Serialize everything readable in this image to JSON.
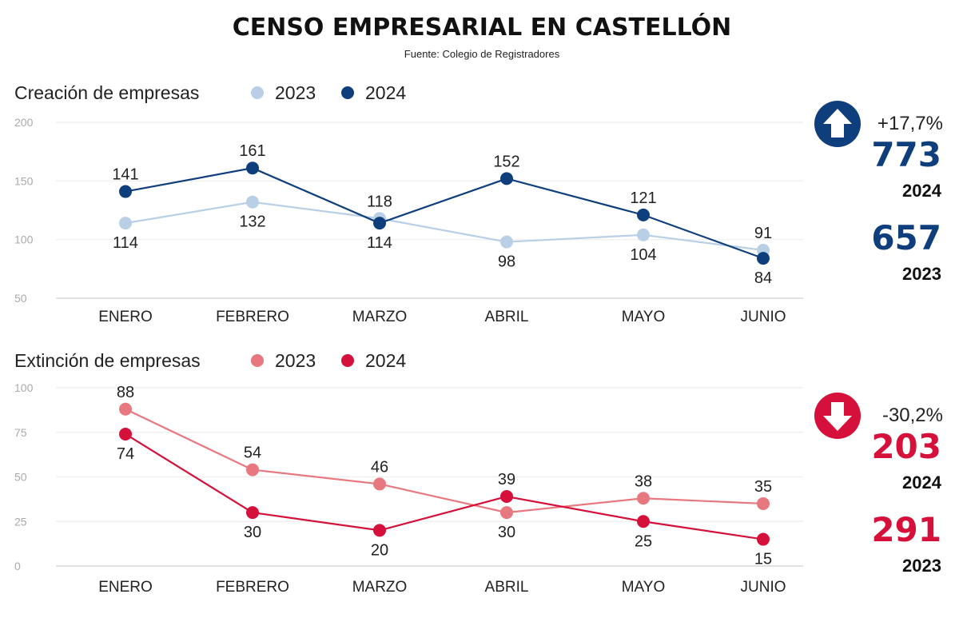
{
  "title": "CENSO EMPRESARIAL EN CASTELLÓN",
  "source": "Fuente: Colegio de Registradores",
  "chart_data": [
    {
      "type": "line",
      "title": "Creación de empresas",
      "categories": [
        "ENERO",
        "FEBRERO",
        "MARZO",
        "ABRIL",
        "MAYO",
        "JUNIO"
      ],
      "ylim": [
        50,
        200
      ],
      "yticks": [
        50,
        100,
        150,
        200
      ],
      "grid": true,
      "legend_position": "top",
      "series": [
        {
          "name": "2023",
          "values": [
            114,
            132,
            118,
            98,
            104,
            91
          ],
          "color": "#b9cfe6"
        },
        {
          "name": "2024",
          "values": [
            141,
            161,
            114,
            152,
            121,
            84
          ],
          "color": "#0e3f7c"
        }
      ],
      "summary": {
        "trend": "up",
        "icon": "arrow-up-icon",
        "change": "+17,7%",
        "total_2024": "773",
        "label_2024": "2024",
        "total_2023": "657",
        "label_2023": "2023",
        "color": "#0e3f7c"
      }
    },
    {
      "type": "line",
      "title": "Extinción de empresas",
      "categories": [
        "ENERO",
        "FEBRERO",
        "MARZO",
        "ABRIL",
        "MAYO",
        "JUNIO"
      ],
      "ylim": [
        0,
        100
      ],
      "yticks": [
        0,
        25,
        50,
        75,
        100
      ],
      "grid": true,
      "legend_position": "top",
      "series": [
        {
          "name": "2023",
          "values": [
            88,
            54,
            46,
            30,
            38,
            35
          ],
          "color": "#e8787f"
        },
        {
          "name": "2024",
          "values": [
            74,
            30,
            20,
            39,
            25,
            15
          ],
          "color": "#d5103a"
        }
      ],
      "summary": {
        "trend": "down",
        "icon": "arrow-down-icon",
        "change": "-30,2%",
        "total_2024": "203",
        "label_2024": "2024",
        "total_2023": "291",
        "label_2023": "2023",
        "color": "#d5103a"
      }
    }
  ]
}
